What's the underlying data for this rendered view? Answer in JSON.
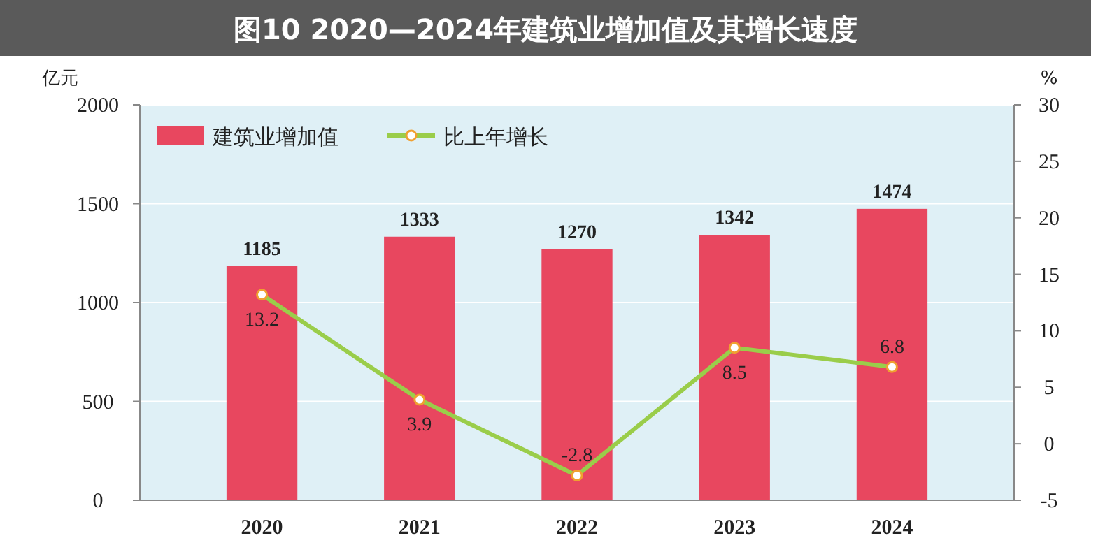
{
  "chart_data": {
    "type": "bar",
    "title": "图10  2020—2024年建筑业增加值及其增长速度",
    "ylabel": "亿元",
    "y2label": "%",
    "categories": [
      "2020",
      "2021",
      "2022",
      "2023",
      "2024"
    ],
    "series": [
      {
        "name": "建筑业增加值",
        "color": "#e8475f",
        "values": [
          1185,
          1333,
          1270,
          1342,
          1474
        ]
      },
      {
        "name": "比上年增长",
        "type": "line",
        "axis": "y2",
        "color": "#9acd4a",
        "marker": "circle",
        "values": [
          13.2,
          3.9,
          -2.8,
          8.5,
          6.8
        ]
      }
    ],
    "ylim": [
      0,
      2000
    ],
    "yticks": [
      0,
      500,
      1000,
      1500,
      2000
    ],
    "y2lim": [
      -5,
      30
    ],
    "y2ticks": [
      -5,
      0,
      5,
      10,
      15,
      20,
      25,
      30
    ],
    "data_labels": true,
    "grid": "y",
    "legend": "top left"
  }
}
